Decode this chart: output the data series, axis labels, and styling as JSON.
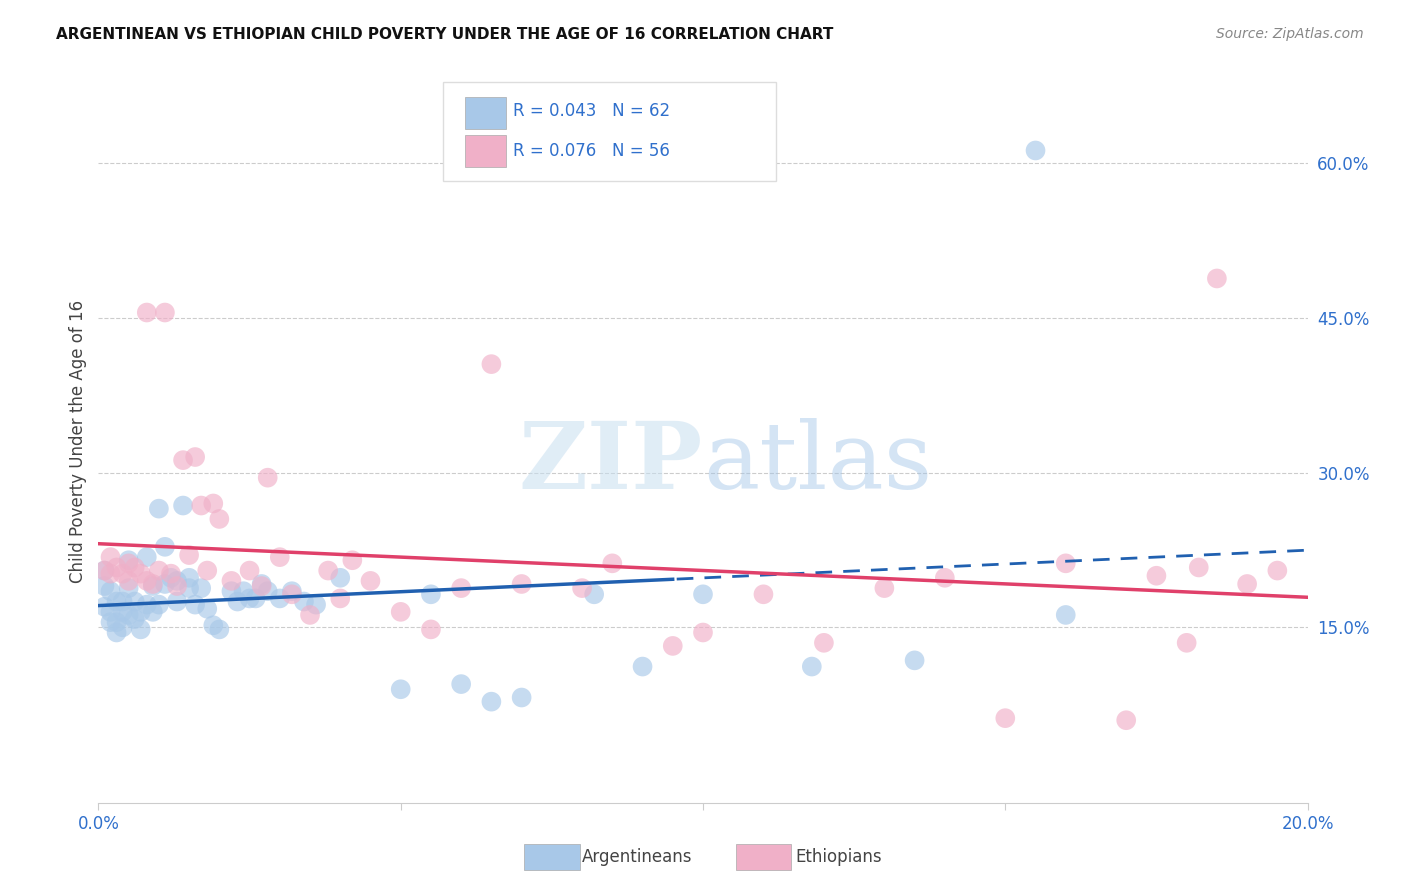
{
  "title": "ARGENTINEAN VS ETHIOPIAN CHILD POVERTY UNDER THE AGE OF 16 CORRELATION CHART",
  "source": "Source: ZipAtlas.com",
  "ylabel": "Child Poverty Under the Age of 16",
  "xlim": [
    0,
    0.2
  ],
  "ylim": [
    -0.02,
    0.68
  ],
  "right_yticks": [
    0.15,
    0.3,
    0.45,
    0.6
  ],
  "right_yticklabels": [
    "15.0%",
    "30.0%",
    "45.0%",
    "60.0%"
  ],
  "argentina_color": "#a8c8e8",
  "ethiopia_color": "#f0b0c8",
  "argentina_line_color": "#2060b0",
  "ethiopia_line_color": "#e0406a",
  "legend_text_color": "#3070cc",
  "watermark_color": "#d8eaf8",
  "argentina_x": [
    0.001,
    0.001,
    0.001,
    0.002,
    0.002,
    0.002,
    0.003,
    0.003,
    0.003,
    0.004,
    0.004,
    0.004,
    0.005,
    0.005,
    0.005,
    0.006,
    0.006,
    0.007,
    0.007,
    0.008,
    0.008,
    0.009,
    0.009,
    0.01,
    0.01,
    0.011,
    0.011,
    0.012,
    0.013,
    0.013,
    0.014,
    0.015,
    0.015,
    0.016,
    0.017,
    0.018,
    0.019,
    0.02,
    0.022,
    0.023,
    0.024,
    0.025,
    0.026,
    0.027,
    0.028,
    0.03,
    0.032,
    0.034,
    0.036,
    0.04,
    0.05,
    0.055,
    0.065,
    0.07,
    0.082,
    0.09,
    0.1,
    0.118,
    0.135,
    0.155,
    0.06,
    0.16
  ],
  "argentina_y": [
    0.205,
    0.19,
    0.17,
    0.185,
    0.165,
    0.155,
    0.175,
    0.155,
    0.145,
    0.175,
    0.165,
    0.15,
    0.215,
    0.188,
    0.162,
    0.175,
    0.158,
    0.165,
    0.148,
    0.218,
    0.172,
    0.19,
    0.165,
    0.265,
    0.172,
    0.192,
    0.228,
    0.198,
    0.175,
    0.195,
    0.268,
    0.188,
    0.198,
    0.172,
    0.188,
    0.168,
    0.152,
    0.148,
    0.185,
    0.175,
    0.185,
    0.178,
    0.178,
    0.192,
    0.185,
    0.178,
    0.185,
    0.175,
    0.172,
    0.198,
    0.09,
    0.182,
    0.078,
    0.082,
    0.182,
    0.112,
    0.182,
    0.112,
    0.118,
    0.612,
    0.095,
    0.162
  ],
  "ethiopia_x": [
    0.001,
    0.002,
    0.002,
    0.003,
    0.004,
    0.005,
    0.005,
    0.006,
    0.007,
    0.008,
    0.008,
    0.009,
    0.01,
    0.011,
    0.012,
    0.013,
    0.014,
    0.015,
    0.016,
    0.017,
    0.018,
    0.019,
    0.02,
    0.022,
    0.025,
    0.027,
    0.028,
    0.03,
    0.032,
    0.035,
    0.038,
    0.04,
    0.042,
    0.045,
    0.05,
    0.055,
    0.06,
    0.065,
    0.07,
    0.08,
    0.085,
    0.095,
    0.1,
    0.11,
    0.12,
    0.13,
    0.14,
    0.15,
    0.16,
    0.17,
    0.175,
    0.18,
    0.182,
    0.185,
    0.19,
    0.195
  ],
  "ethiopia_y": [
    0.205,
    0.202,
    0.218,
    0.208,
    0.202,
    0.212,
    0.195,
    0.208,
    0.202,
    0.455,
    0.195,
    0.192,
    0.205,
    0.455,
    0.202,
    0.19,
    0.312,
    0.22,
    0.315,
    0.268,
    0.205,
    0.27,
    0.255,
    0.195,
    0.205,
    0.19,
    0.295,
    0.218,
    0.182,
    0.162,
    0.205,
    0.178,
    0.215,
    0.195,
    0.165,
    0.148,
    0.188,
    0.405,
    0.192,
    0.188,
    0.212,
    0.132,
    0.145,
    0.182,
    0.135,
    0.188,
    0.198,
    0.062,
    0.212,
    0.06,
    0.2,
    0.135,
    0.208,
    0.488,
    0.192,
    0.205
  ]
}
